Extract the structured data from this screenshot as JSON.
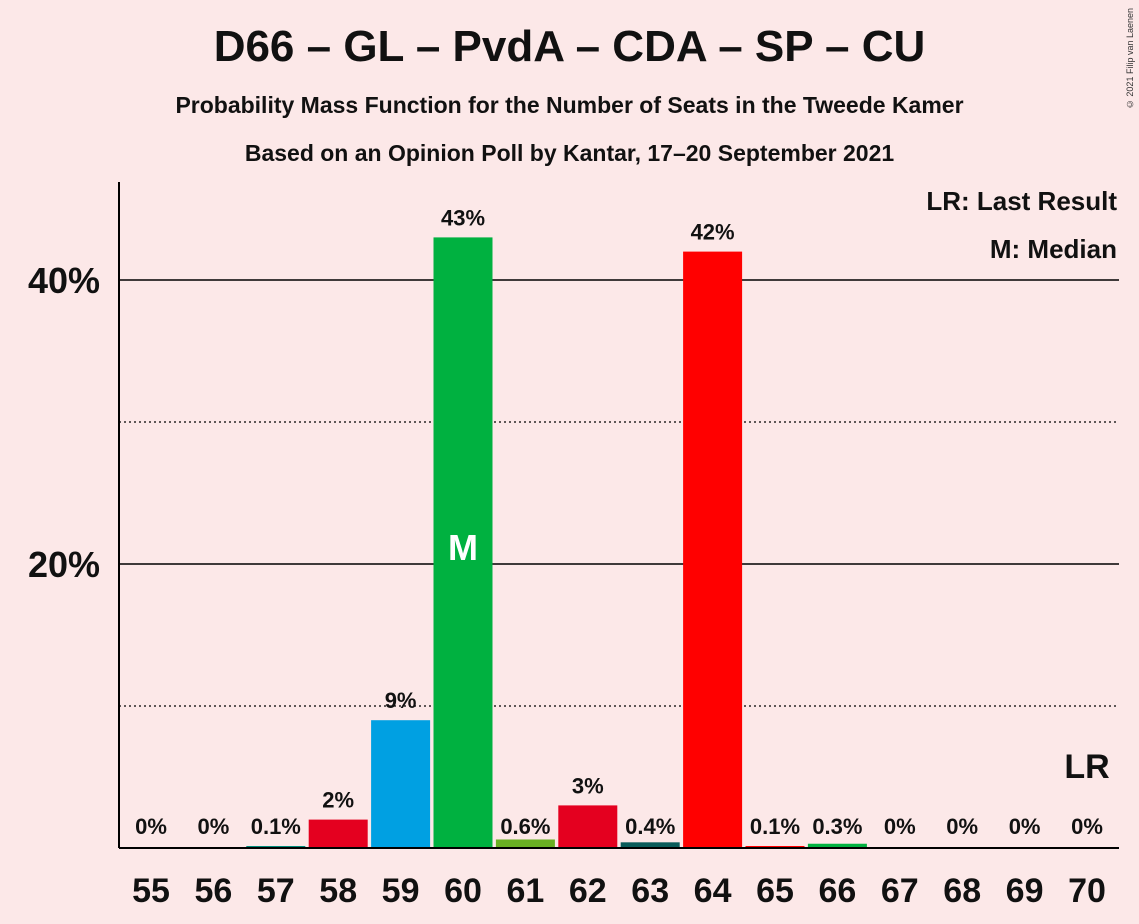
{
  "title": "D66 – GL – PvdA – CDA – SP – CU",
  "subtitle": "Probability Mass Function for the Number of Seats in the Tweede Kamer",
  "subtitle2": "Based on an Opinion Poll by Kantar, 17–20 September 2021",
  "copyright": "© 2021 Filip van Laenen",
  "legend": {
    "last_result": "LR: Last Result",
    "median": "M: Median"
  },
  "chart_data": {
    "type": "bar",
    "categories": [
      "55",
      "56",
      "57",
      "58",
      "59",
      "60",
      "61",
      "62",
      "63",
      "64",
      "65",
      "66",
      "67",
      "68",
      "69",
      "70"
    ],
    "values": [
      0,
      0,
      0.1,
      2,
      9,
      43,
      0.6,
      3,
      0.4,
      42,
      0.1,
      0.3,
      0,
      0,
      0,
      0
    ],
    "data_labels": [
      "0%",
      "0%",
      "0.1%",
      "2%",
      "9%",
      "43%",
      "0.6%",
      "3%",
      "0.4%",
      "42%",
      "0.1%",
      "0.3%",
      "0%",
      "0%",
      "0%",
      "0%"
    ],
    "bar_colors": [
      "#e4001f",
      "#0a5c32",
      "#008b7b",
      "#e4001f",
      "#00a0e2",
      "#00b140",
      "#6ab023",
      "#e4001f",
      "#0a5c5a",
      "#ff0000",
      "#ff0000",
      "#00b140",
      "#00b140",
      "#00b140",
      "#00b140",
      "#00b140"
    ],
    "ylim": [
      0,
      47
    ],
    "yticks": [
      20,
      40
    ],
    "ytick_labels": [
      "20%",
      "40%"
    ],
    "minor_gridlines": [
      10,
      30
    ],
    "median_category": "60",
    "median_label": "M",
    "last_result_category": "70",
    "last_result_label": "LR",
    "legend_position": "top-right"
  }
}
